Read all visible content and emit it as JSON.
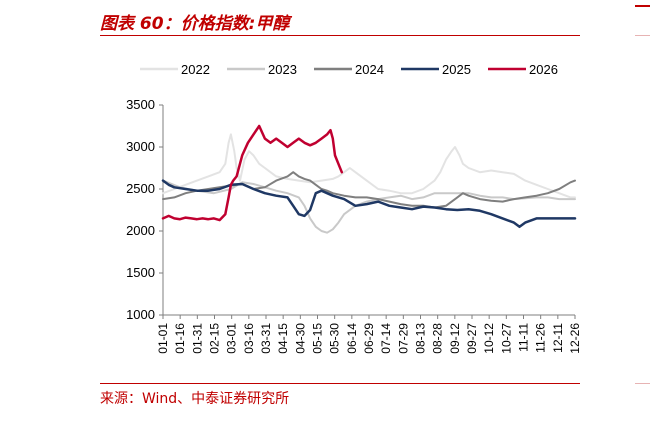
{
  "header": {
    "title": "图表 60：价格指数:甲醇"
  },
  "footer": {
    "source": "来源：Wind、中泰证券研究所"
  },
  "chart_data": {
    "type": "line",
    "title": "价格指数:甲醇",
    "xlabel": "",
    "ylabel": "",
    "ylim": [
      1000,
      3500
    ],
    "yticks": [
      1000,
      1500,
      2000,
      2500,
      3000,
      3500
    ],
    "xticks": [
      "01-01",
      "01-16",
      "01-31",
      "02-15",
      "03-01",
      "03-16",
      "03-31",
      "04-15",
      "04-30",
      "05-15",
      "05-30",
      "06-14",
      "06-29",
      "07-14",
      "07-29",
      "08-13",
      "08-28",
      "09-12",
      "09-27",
      "10-12",
      "10-27",
      "11-11",
      "11-26",
      "12-11",
      "12-26"
    ],
    "x_range_days": [
      0,
      364
    ],
    "grid": false,
    "legend_position": "top",
    "series": [
      {
        "name": "2022",
        "color": "#e3e3e3",
        "width": 2,
        "x": [
          0,
          10,
          20,
          30,
          40,
          50,
          55,
          58,
          60,
          63,
          65,
          68,
          72,
          76,
          80,
          85,
          90,
          95,
          100,
          110,
          120,
          130,
          140,
          150,
          155,
          160,
          165,
          170,
          180,
          190,
          200,
          210,
          220,
          230,
          240,
          245,
          250,
          255,
          258,
          262,
          265,
          270,
          280,
          290,
          300,
          310,
          320,
          330,
          340,
          350,
          360,
          364
        ],
        "y": [
          2450,
          2500,
          2550,
          2600,
          2650,
          2700,
          2800,
          3050,
          3150,
          2950,
          2750,
          2600,
          2850,
          2950,
          2900,
          2800,
          2750,
          2700,
          2650,
          2620,
          2600,
          2580,
          2600,
          2620,
          2650,
          2700,
          2750,
          2700,
          2600,
          2500,
          2480,
          2450,
          2450,
          2500,
          2600,
          2700,
          2850,
          2950,
          3000,
          2900,
          2800,
          2750,
          2700,
          2720,
          2700,
          2680,
          2600,
          2550,
          2500,
          2450,
          2400,
          2400
        ]
      },
      {
        "name": "2023",
        "color": "#c9c9c9",
        "width": 2,
        "x": [
          0,
          15,
          30,
          45,
          60,
          70,
          80,
          90,
          100,
          110,
          120,
          125,
          130,
          135,
          140,
          145,
          150,
          155,
          160,
          170,
          180,
          190,
          200,
          210,
          220,
          230,
          240,
          250,
          260,
          270,
          280,
          290,
          300,
          310,
          320,
          330,
          340,
          350,
          364
        ],
        "y": [
          2600,
          2520,
          2480,
          2450,
          2500,
          2580,
          2560,
          2520,
          2480,
          2450,
          2400,
          2300,
          2150,
          2050,
          2000,
          1980,
          2020,
          2100,
          2200,
          2300,
          2350,
          2380,
          2400,
          2420,
          2380,
          2400,
          2450,
          2450,
          2450,
          2450,
          2420,
          2400,
          2400,
          2380,
          2390,
          2400,
          2400,
          2380,
          2380
        ]
      },
      {
        "name": "2024",
        "color": "#7f7f7f",
        "width": 2,
        "x": [
          0,
          10,
          20,
          30,
          40,
          50,
          60,
          70,
          80,
          90,
          100,
          110,
          115,
          120,
          125,
          130,
          135,
          140,
          145,
          150,
          160,
          170,
          180,
          190,
          200,
          210,
          220,
          230,
          240,
          250,
          260,
          265,
          270,
          280,
          290,
          300,
          310,
          320,
          330,
          340,
          350,
          360,
          364
        ],
        "y": [
          2380,
          2400,
          2450,
          2480,
          2500,
          2520,
          2540,
          2560,
          2500,
          2520,
          2600,
          2650,
          2700,
          2650,
          2620,
          2600,
          2550,
          2500,
          2480,
          2450,
          2420,
          2400,
          2400,
          2380,
          2350,
          2320,
          2300,
          2300,
          2280,
          2300,
          2400,
          2450,
          2420,
          2380,
          2360,
          2350,
          2380,
          2400,
          2420,
          2450,
          2500,
          2580,
          2600
        ]
      },
      {
        "name": "2025",
        "color": "#1f3864",
        "width": 2.5,
        "x": [
          0,
          5,
          10,
          20,
          30,
          40,
          50,
          60,
          70,
          80,
          90,
          100,
          110,
          115,
          120,
          125,
          130,
          135,
          140,
          145,
          150,
          160,
          170,
          180,
          190,
          200,
          210,
          220,
          230,
          240,
          250,
          260,
          270,
          280,
          290,
          300,
          310,
          315,
          320,
          330,
          340,
          350,
          360,
          364
        ],
        "y": [
          2600,
          2550,
          2520,
          2500,
          2480,
          2480,
          2500,
          2550,
          2560,
          2500,
          2450,
          2420,
          2400,
          2300,
          2200,
          2180,
          2250,
          2450,
          2480,
          2450,
          2420,
          2380,
          2300,
          2320,
          2350,
          2300,
          2280,
          2260,
          2290,
          2280,
          2260,
          2250,
          2260,
          2240,
          2200,
          2150,
          2100,
          2050,
          2100,
          2150,
          2150,
          2150,
          2150,
          2150
        ]
      },
      {
        "name": "2026",
        "color": "#c00030",
        "width": 2.5,
        "x": [
          0,
          5,
          10,
          15,
          20,
          25,
          30,
          35,
          40,
          45,
          50,
          55,
          58,
          60,
          62,
          65,
          70,
          75,
          80,
          85,
          90,
          95,
          100,
          105,
          110,
          115,
          120,
          125,
          130,
          135,
          140,
          145,
          148,
          150,
          152,
          155,
          158
        ],
        "y": [
          2150,
          2180,
          2150,
          2140,
          2160,
          2150,
          2140,
          2150,
          2140,
          2150,
          2130,
          2200,
          2400,
          2550,
          2600,
          2650,
          2900,
          3050,
          3150,
          3250,
          3100,
          3050,
          3100,
          3050,
          3000,
          3050,
          3100,
          3050,
          3020,
          3050,
          3100,
          3150,
          3200,
          3100,
          2900,
          2800,
          2700
        ]
      }
    ]
  }
}
